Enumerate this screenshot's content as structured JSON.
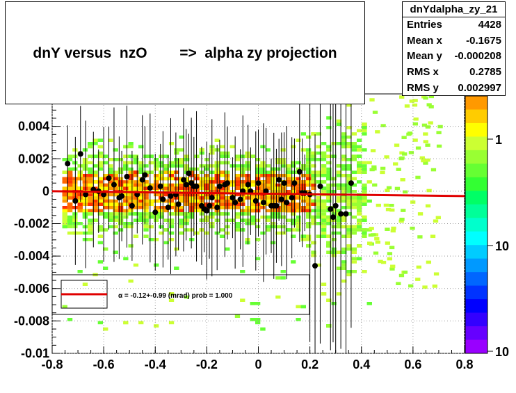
{
  "title": "dnY versus  nzO        =>  alpha zy projection",
  "stats": {
    "name": "dnYdalpha_zy_21",
    "rows": [
      {
        "key": "Entries",
        "value": "4428"
      },
      {
        "key": "Mean x",
        "value": "-0.1675"
      },
      {
        "key": "Mean y",
        "value": "-0.000208"
      },
      {
        "key": "RMS x",
        "value": "0.2785"
      },
      {
        "key": "RMS y",
        "value": "0.002997"
      }
    ]
  },
  "fit_legend": "α =   -0.12+-0.99 (mrad) prob = 1.000",
  "colorbar_labels": [
    "1",
    "10",
    "10"
  ],
  "colors": {
    "fit_line": "#e00000",
    "profile_marker": "#000000"
  },
  "chart_data": {
    "type": "scatter",
    "subtype": "2D histogram (colz) with profile and linear fit",
    "xlim": [
      -0.8,
      0.8
    ],
    "ylim": [
      -0.01,
      0.006
    ],
    "x_ticks": [
      "-0.8",
      "-0.6",
      "-0.4",
      "-0.2",
      "0",
      "0.2",
      "0.4",
      "0.6",
      "0.8"
    ],
    "y_ticks": [
      "-0.01",
      "-0.008",
      "-0.006",
      "-0.004",
      "-0.002",
      "0",
      "0.002",
      "0.004"
    ],
    "grid": true,
    "profile": {
      "x": [
        -0.74,
        -0.71,
        -0.69,
        -0.67,
        -0.64,
        -0.62,
        -0.6,
        -0.58,
        -0.56,
        -0.54,
        -0.53,
        -0.51,
        -0.49,
        -0.47,
        -0.45,
        -0.44,
        -0.42,
        -0.4,
        -0.38,
        -0.37,
        -0.35,
        -0.34,
        -0.32,
        -0.31,
        -0.29,
        -0.28,
        -0.27,
        -0.26,
        -0.25,
        -0.24,
        -0.22,
        -0.21,
        -0.2,
        -0.19,
        -0.18,
        -0.16,
        -0.15,
        -0.13,
        -0.12,
        -0.1,
        -0.09,
        -0.07,
        -0.06,
        -0.04,
        -0.03,
        -0.01,
        0.0,
        0.02,
        0.03,
        0.05,
        0.06,
        0.07,
        0.08,
        0.09,
        0.1,
        0.11,
        0.13,
        0.14,
        0.16,
        0.17,
        0.18,
        0.2,
        0.22,
        0.24,
        0.28,
        0.29,
        0.3,
        0.32,
        0.34,
        0.36
      ],
      "y": [
        0.0017,
        -0.0006,
        0.0023,
        -0.0002,
        0.0001,
        0.0,
        -0.0002,
        0.0008,
        0.0004,
        -0.0004,
        -0.0003,
        0.0009,
        -0.0009,
        -0.0002,
        0.0007,
        0.001,
        0.0002,
        -0.0013,
        0.0003,
        -0.0005,
        -0.001,
        -0.0003,
        -0.0002,
        -0.0008,
        0.0007,
        0.0004,
        0.0011,
        0.0005,
        0.0003,
        0.0003,
        -0.0009,
        -0.0011,
        -0.0012,
        -0.0009,
        -0.0004,
        -0.001,
        0.0003,
        0.0004,
        0.0005,
        -0.0004,
        -0.0007,
        -0.0005,
        0.0,
        0.0004,
        0.0,
        -0.0006,
        0.0005,
        -0.0007,
        0.0,
        -0.0009,
        -0.0009,
        -0.0009,
        0.0007,
        -0.0005,
        0.0005,
        -0.0007,
        -0.0004,
        0.0005,
        0.0012,
        -0.0001,
        -0.0001,
        -0.0002,
        -0.0046,
        0.0003,
        -0.0011,
        -0.0016,
        -0.0009,
        -0.0014,
        -0.0014,
        0.0005
      ]
    },
    "fit": {
      "x": [
        -0.8,
        0.8
      ],
      "y": [
        0.0,
        -0.0003
      ]
    }
  }
}
